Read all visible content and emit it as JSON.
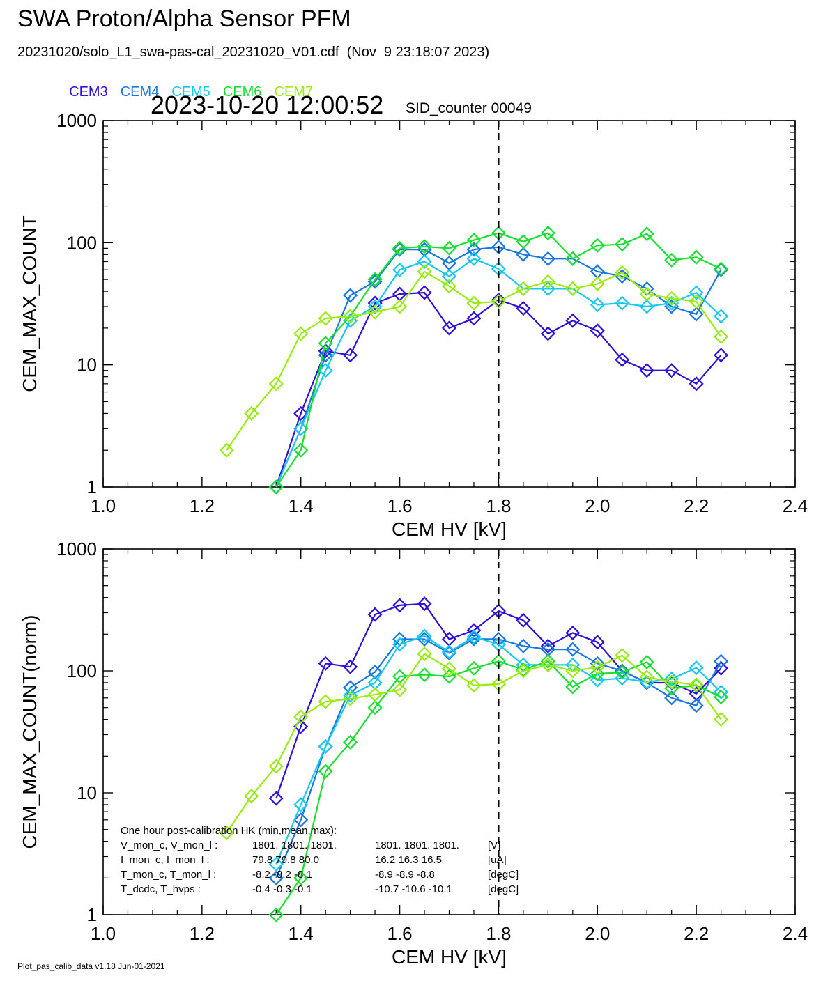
{
  "header": {
    "title": "SWA Proton/Alpha Sensor PFM",
    "file_line": "20231020/solo_L1_swa-pas-cal_20231020_V01.cdf  (Nov  9 23:18:07 2023)",
    "timestamp": "2023-10-20 12:00:52",
    "sid_counter": "SID_counter 00049"
  },
  "legend": [
    {
      "name": "CEM3",
      "color": "#3010d8"
    },
    {
      "name": "CEM4",
      "color": "#1878e0"
    },
    {
      "name": "CEM5",
      "color": "#18c8f0"
    },
    {
      "name": "CEM6",
      "color": "#18e030"
    },
    {
      "name": "CEM7",
      "color": "#98ec10"
    }
  ],
  "footer": "Plot_pas_calib_data v1.18 Jun-01-2021",
  "chart_data": [
    {
      "type": "line",
      "marker": "diamond",
      "xlabel": "CEM HV [kV]",
      "ylabel": "CEM_MAX_COUNT",
      "xlim": [
        1.0,
        2.4
      ],
      "ylim": [
        1,
        1000
      ],
      "yscale": "log",
      "xticks": [
        "1.0",
        "1.2",
        "1.4",
        "1.6",
        "1.8",
        "2.0",
        "2.2",
        "2.4"
      ],
      "yticks": [
        "1",
        "10",
        "100",
        "1000"
      ],
      "vline_x": 1.8,
      "series": [
        {
          "name": "CEM3",
          "color": "#3010d8",
          "x": [
            1.35,
            1.4,
            1.45,
            1.5,
            1.55,
            1.6,
            1.65,
            1.7,
            1.75,
            1.8,
            1.85,
            1.9,
            1.95,
            2.0,
            2.05,
            2.1,
            2.15,
            2.2,
            2.25
          ],
          "y": [
            1,
            4,
            13,
            12,
            32,
            38,
            39,
            20,
            24,
            34,
            29,
            18,
            23,
            19,
            11,
            9,
            9,
            7,
            12
          ]
        },
        {
          "name": "CEM4",
          "color": "#1878e0",
          "x": [
            1.35,
            1.4,
            1.45,
            1.5,
            1.55,
            1.6,
            1.65,
            1.7,
            1.75,
            1.8,
            1.85,
            1.9,
            1.95,
            2.0,
            2.05,
            2.1,
            2.15,
            2.2,
            2.25
          ],
          "y": [
            1,
            3,
            12,
            37,
            48,
            88,
            88,
            68,
            88,
            92,
            80,
            74,
            74,
            58,
            53,
            42,
            30,
            26,
            60
          ]
        },
        {
          "name": "CEM5",
          "color": "#18c8f0",
          "x": [
            1.35,
            1.4,
            1.45,
            1.5,
            1.55,
            1.6,
            1.65,
            1.7,
            1.75,
            1.8,
            1.85,
            1.9,
            1.95,
            2.0,
            2.05,
            2.1,
            2.15,
            2.2,
            2.25
          ],
          "y": [
            1,
            3,
            9,
            23,
            30,
            60,
            70,
            53,
            74,
            61,
            42,
            42,
            42,
            31,
            32,
            30,
            32,
            39,
            25
          ]
        },
        {
          "name": "CEM6",
          "color": "#18e030",
          "x": [
            1.35,
            1.4,
            1.45,
            1.5,
            1.55,
            1.6,
            1.65,
            1.7,
            1.75,
            1.8,
            1.85,
            1.9,
            1.95,
            2.0,
            2.05,
            2.1,
            2.15,
            2.2,
            2.25
          ],
          "y": [
            1,
            2,
            15,
            25,
            50,
            90,
            93,
            90,
            105,
            120,
            102,
            120,
            74,
            95,
            97,
            118,
            72,
            76,
            61
          ]
        },
        {
          "name": "CEM7",
          "color": "#98ec10",
          "x": [
            1.25,
            1.3,
            1.35,
            1.4,
            1.45,
            1.5,
            1.55,
            1.6,
            1.65,
            1.7,
            1.75,
            1.8,
            1.85,
            1.9,
            1.95,
            2.0,
            2.05,
            2.1,
            2.15,
            2.2,
            2.25
          ],
          "y": [
            2,
            4,
            7,
            18,
            24,
            25,
            27,
            30,
            58,
            44,
            32,
            33,
            42,
            48,
            42,
            46,
            57,
            38,
            35,
            33,
            17
          ]
        }
      ]
    },
    {
      "type": "line",
      "marker": "diamond",
      "xlabel": "CEM HV [kV]",
      "ylabel": "CEM_MAX_COUNT(norm)",
      "xlim": [
        1.0,
        2.4
      ],
      "ylim": [
        1,
        1000
      ],
      "yscale": "log",
      "xticks": [
        "1.0",
        "1.2",
        "1.4",
        "1.6",
        "1.8",
        "2.0",
        "2.2",
        "2.4"
      ],
      "yticks": [
        "1",
        "10",
        "100",
        "1000"
      ],
      "vline_x": 1.8,
      "series": [
        {
          "name": "CEM3",
          "color": "#3010d8",
          "x": [
            1.35,
            1.4,
            1.45,
            1.5,
            1.55,
            1.6,
            1.65,
            1.7,
            1.75,
            1.8,
            1.85,
            1.9,
            1.95,
            2.0,
            2.05,
            2.1,
            2.15,
            2.2,
            2.25
          ],
          "y": [
            9,
            35,
            115,
            108,
            290,
            345,
            355,
            182,
            215,
            310,
            260,
            160,
            205,
            172,
            100,
            80,
            80,
            65,
            105
          ]
        },
        {
          "name": "CEM4",
          "color": "#1878e0",
          "x": [
            1.35,
            1.4,
            1.45,
            1.5,
            1.55,
            1.6,
            1.65,
            1.7,
            1.75,
            1.8,
            1.85,
            1.9,
            1.95,
            2.0,
            2.05,
            2.1,
            2.15,
            2.2,
            2.25
          ],
          "y": [
            2,
            6,
            24,
            73,
            98,
            182,
            182,
            140,
            183,
            182,
            160,
            150,
            150,
            115,
            100,
            80,
            60,
            52,
            120
          ]
        },
        {
          "name": "CEM5",
          "color": "#18c8f0",
          "x": [
            1.35,
            1.4,
            1.45,
            1.5,
            1.55,
            1.6,
            1.65,
            1.7,
            1.75,
            1.8,
            1.85,
            1.9,
            1.95,
            2.0,
            2.05,
            2.1,
            2.15,
            2.2,
            2.25
          ],
          "y": [
            2.6,
            8,
            24,
            63,
            80,
            165,
            193,
            143,
            190,
            165,
            112,
            112,
            112,
            84,
            87,
            81,
            86,
            106,
            67
          ]
        },
        {
          "name": "CEM6",
          "color": "#18e030",
          "x": [
            1.35,
            1.4,
            1.45,
            1.5,
            1.55,
            1.6,
            1.65,
            1.7,
            1.75,
            1.8,
            1.85,
            1.9,
            1.95,
            2.0,
            2.05,
            2.1,
            2.15,
            2.2,
            2.25
          ],
          "y": [
            1,
            2,
            15,
            26,
            50,
            90,
            93,
            90,
            105,
            120,
            102,
            120,
            74,
            95,
            97,
            118,
            72,
            76,
            61
          ]
        },
        {
          "name": "CEM7",
          "color": "#98ec10",
          "x": [
            1.25,
            1.3,
            1.35,
            1.4,
            1.45,
            1.5,
            1.55,
            1.6,
            1.65,
            1.7,
            1.75,
            1.8,
            1.85,
            1.9,
            1.95,
            2.0,
            2.05,
            2.1,
            2.15,
            2.2,
            2.25
          ],
          "y": [
            4.7,
            9.4,
            16.5,
            42,
            56,
            59,
            64,
            70,
            138,
            104,
            76,
            78,
            100,
            112,
            100,
            107,
            134,
            89,
            81,
            77,
            40
          ]
        }
      ],
      "annotation": {
        "title": "One hour post-calibration HK  (min,mean,max):",
        "rows": [
          {
            "label": "V_mon_c, V_mon_l :",
            "c": "1801.  1801.  1801.",
            "l": "1801.  1801.  1801.",
            "unit": "[V]"
          },
          {
            "label": "I_mon_c,  I_mon_l :",
            "c": "79.8   79.8   80.0",
            "l": "16.2   16.3   16.5",
            "unit": "[uA]"
          },
          {
            "label": "T_mon_c, T_mon_l :",
            "c": "-8.2   -8.2   -8.1",
            "l": "-8.9   -8.9   -8.8",
            "unit": "[degC]"
          },
          {
            "label": "T_dcdc,    T_hvps :",
            "c": "-0.4   -0.3   -0.1",
            "l": "-10.7  -10.6  -10.1",
            "unit": "[degC]"
          }
        ]
      }
    }
  ]
}
